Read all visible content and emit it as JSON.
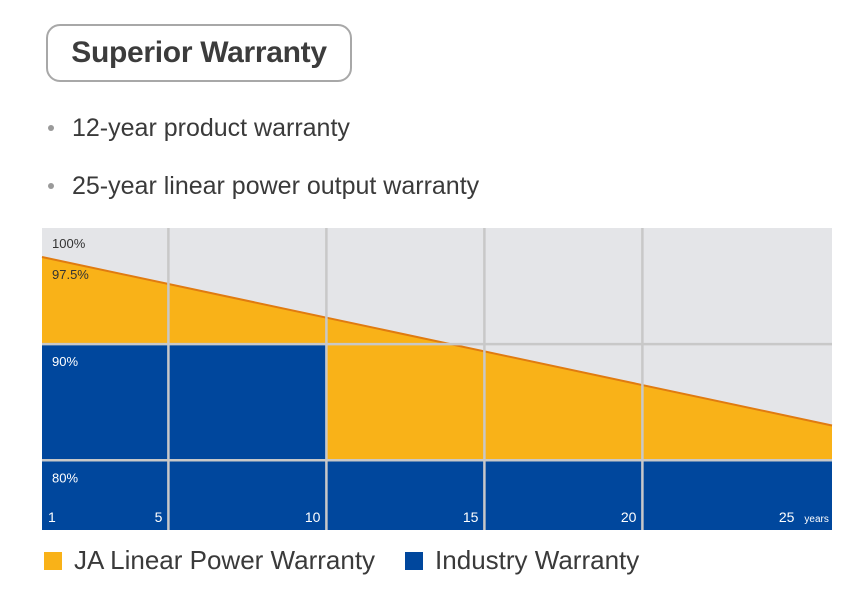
{
  "title": "Superior Warranty",
  "bullets": [
    "12-year product warranty",
    "25-year linear power output warranty"
  ],
  "chart_data": {
    "type": "area",
    "x_ticks": [
      "1",
      "5",
      "10",
      "15",
      "20",
      "25"
    ],
    "x_tick_values": [
      1,
      5,
      10,
      15,
      20,
      25
    ],
    "x_unit": "years",
    "y_ticks": [
      "100%",
      "97.5%",
      "90%",
      "80%"
    ],
    "y_tick_values": [
      100,
      97.5,
      90,
      80
    ],
    "xlim": [
      1,
      26
    ],
    "ylim": [
      74,
      100
    ],
    "grid": true,
    "legend_position": "bottom-left",
    "series": [
      {
        "name": "JA Linear Power Warranty",
        "color": "#f9b218",
        "x": [
          1,
          26
        ],
        "y": [
          97.5,
          83.0
        ]
      },
      {
        "name": "Industry Warranty",
        "color": "#00479d",
        "x": [
          1,
          10,
          10,
          26
        ],
        "y": [
          90,
          90,
          80,
          80
        ]
      }
    ]
  },
  "colors": {
    "background": "#e4e5e8",
    "grid": "#c8c8c8",
    "line": "#e07b10"
  }
}
